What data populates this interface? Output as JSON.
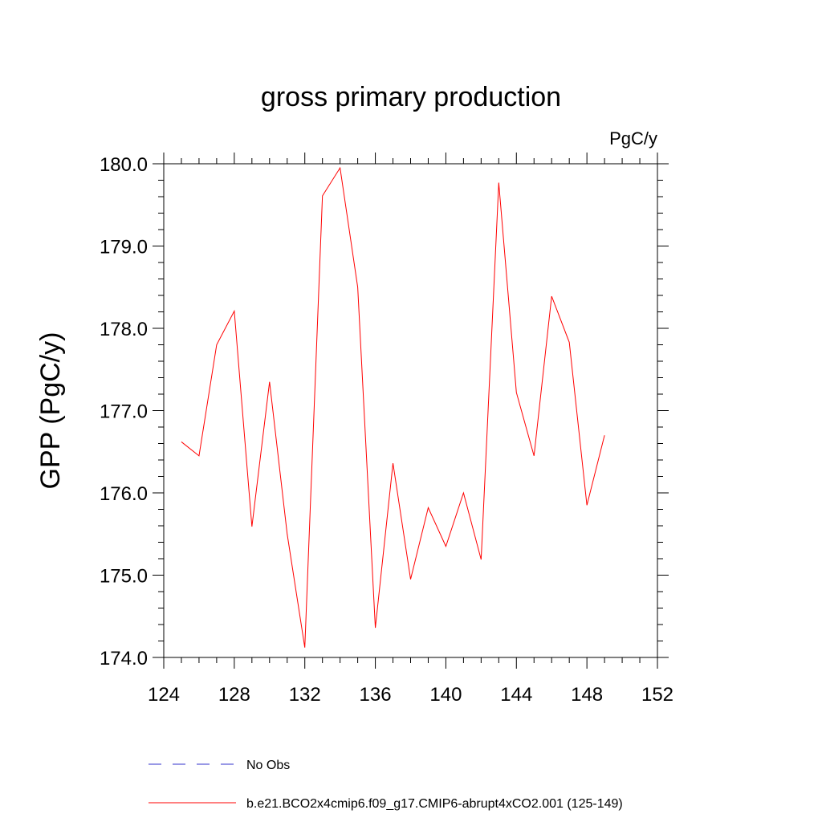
{
  "chart_data": {
    "type": "line",
    "title": "gross primary production",
    "ylabel": "GPP  (PgC/y)",
    "xlabel": "",
    "units": "PgC/y",
    "xlim": [
      124,
      152
    ],
    "ylim": [
      174.0,
      180.0
    ],
    "xticks": [
      124,
      128,
      132,
      136,
      140,
      144,
      148,
      152
    ],
    "yticks": [
      174.0,
      175.0,
      176.0,
      177.0,
      178.0,
      179.0,
      180.0
    ],
    "x_tick_labels": [
      "124",
      "128",
      "132",
      "136",
      "140",
      "144",
      "148",
      "152"
    ],
    "y_tick_labels": [
      "174.0",
      "175.0",
      "176.0",
      "177.0",
      "178.0",
      "179.0",
      "180.0"
    ],
    "grid": false,
    "legend_position": "bottom",
    "series": [
      {
        "name": "b.e21.BCO2x4cmip6.f09_g17.CMIP6-abrupt4xCO2.001 (125-149)",
        "color": "#ff0000",
        "style": "solid",
        "x": [
          125,
          126,
          127,
          128,
          129,
          130,
          131,
          132,
          133,
          134,
          135,
          136,
          137,
          138,
          139,
          140,
          141,
          142,
          143,
          144,
          145,
          146,
          147,
          148,
          149
        ],
        "y": [
          176.62,
          176.45,
          177.8,
          178.21,
          175.59,
          177.35,
          175.5,
          174.12,
          179.61,
          179.95,
          178.5,
          174.36,
          176.36,
          174.95,
          175.82,
          175.35,
          176.0,
          175.19,
          179.77,
          177.22,
          176.45,
          178.39,
          177.83,
          175.85,
          176.7
        ]
      }
    ],
    "legend": [
      {
        "label": "No Obs",
        "color": "#3333cc",
        "style": "dashed"
      },
      {
        "label": "b.e21.BCO2x4cmip6.f09_g17.CMIP6-abrupt4xCO2.001 (125-149)",
        "color": "#ff0000",
        "style": "solid"
      }
    ]
  }
}
